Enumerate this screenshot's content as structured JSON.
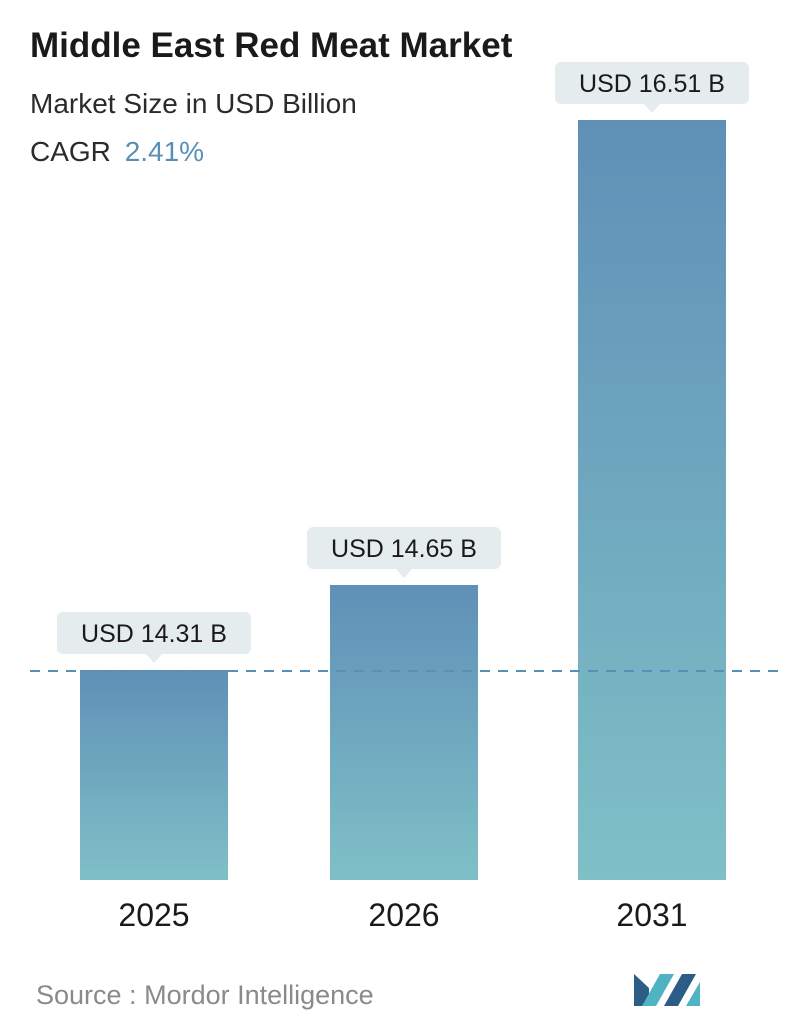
{
  "header": {
    "title": "Middle East Red Meat Market",
    "subtitle": "Market Size in USD Billion",
    "cagr_label": "CAGR",
    "cagr_value": "2.41%"
  },
  "footer": {
    "source_label": "Source :",
    "source_name": "Mordor Intelligence"
  },
  "colors": {
    "bar_top": "#5f90b7",
    "bar_bottom": "#7fc0c7",
    "callout_bg": "#e4ecee",
    "dash_line": "#5a8fb5",
    "cagr_accent": "#5a8fb5",
    "logo_dark": "#2c5d86",
    "logo_light": "#4fb3c3"
  },
  "chart_data": {
    "type": "bar",
    "categories": [
      "2025",
      "2026",
      "2031"
    ],
    "values": [
      14.31,
      14.65,
      16.51
    ],
    "data_labels": [
      "USD 14.31 B",
      "USD 14.65 B",
      "USD 16.51 B"
    ],
    "reference_line_value": 14.31,
    "grid": false,
    "legend": false
  }
}
